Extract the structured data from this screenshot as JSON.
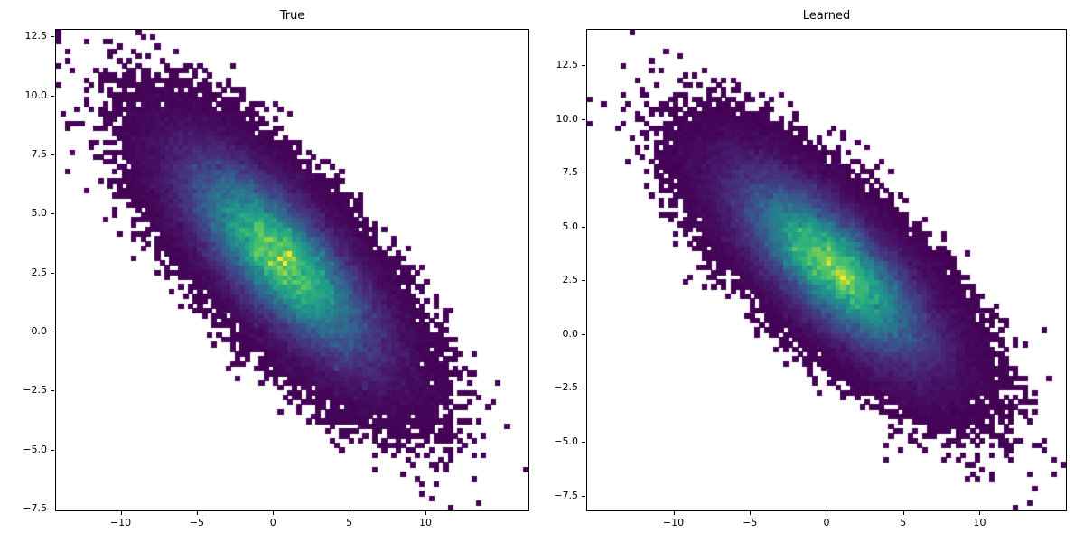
{
  "figure": {
    "background": "#ffffff"
  },
  "colormap": {
    "name": "viridis",
    "stops": [
      [
        0.0,
        "#440154"
      ],
      [
        0.125,
        "#482878"
      ],
      [
        0.25,
        "#3e4989"
      ],
      [
        0.375,
        "#31688e"
      ],
      [
        0.5,
        "#26828e"
      ],
      [
        0.625,
        "#1f9e89"
      ],
      [
        0.75,
        "#35b779"
      ],
      [
        0.875,
        "#6ece58"
      ],
      [
        1.0,
        "#fde725"
      ]
    ]
  },
  "chart_data": [
    {
      "type": "heatmap",
      "subtype": "hist2d",
      "title": "True",
      "bins": 100,
      "n_samples": 100000,
      "seed": 1337,
      "distribution": {
        "kind": "gaussian-2d",
        "mean": [
          0.5,
          3.1
        ],
        "cov": [
          [
            12.25,
            -6.3
          ],
          [
            -6.3,
            5.76
          ]
        ],
        "correlation": -0.75
      },
      "xlim_approx": [
        -13.8,
        13.9
      ],
      "ylim_approx": [
        -8.3,
        14.1
      ],
      "x_ticks": {
        "values": [
          -10,
          -5,
          0,
          5,
          10
        ],
        "labels": [
          "−10",
          "−5",
          "0",
          "5",
          "10"
        ]
      },
      "y_ticks": {
        "values": [
          -7.5,
          -5.0,
          -2.5,
          0.0,
          2.5,
          5.0,
          7.5,
          10.0,
          12.5
        ],
        "labels": [
          "−7.5",
          "−5.0",
          "−2.5",
          "0.0",
          "2.5",
          "5.0",
          "7.5",
          "10.0",
          "12.5"
        ]
      },
      "colormap": "viridis",
      "grid": false,
      "colorbar": false
    },
    {
      "type": "heatmap",
      "subtype": "hist2d",
      "title": "Learned",
      "bins": 100,
      "n_samples": 100000,
      "seed": 7,
      "distribution": {
        "kind": "gaussian-2d",
        "mean": [
          0.5,
          3.1
        ],
        "cov": [
          [
            12.25,
            -6.3
          ],
          [
            -6.3,
            5.76
          ]
        ],
        "correlation": -0.75
      },
      "xlim_approx": [
        -13.8,
        13.9
      ],
      "ylim_approx": [
        -8.3,
        14.1
      ],
      "x_ticks": {
        "values": [
          -10,
          -5,
          0,
          5,
          10
        ],
        "labels": [
          "−10",
          "−5",
          "0",
          "5",
          "10"
        ]
      },
      "y_ticks": {
        "values": [
          -7.5,
          -5.0,
          -2.5,
          0.0,
          2.5,
          5.0,
          7.5,
          10.0,
          12.5
        ],
        "labels": [
          "−7.5",
          "−5.0",
          "−2.5",
          "0.0",
          "2.5",
          "5.0",
          "7.5",
          "10.0",
          "12.5"
        ]
      },
      "colormap": "viridis",
      "grid": false,
      "colorbar": false
    }
  ]
}
